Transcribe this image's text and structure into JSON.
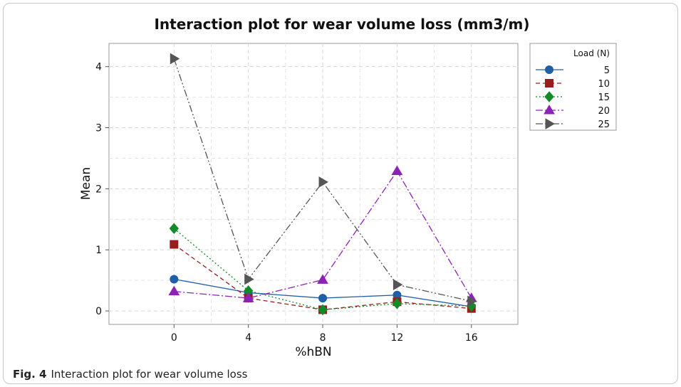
{
  "chart_data": {
    "type": "line",
    "title": "Interaction plot for wear volume loss (mm3/m)",
    "xlabel": "%hBN",
    "ylabel": "Mean",
    "x": [
      0,
      4,
      8,
      12,
      16
    ],
    "x_ticks": [
      "0",
      "4",
      "8",
      "12",
      "16"
    ],
    "y_ticks": [
      "0",
      "1",
      "2",
      "3",
      "4"
    ],
    "xlim": [
      -3.5,
      18.5
    ],
    "ylim": [
      -0.22,
      4.38
    ],
    "grid": true,
    "legend": {
      "title": "Load (N)",
      "position": "right"
    },
    "series": [
      {
        "name": "5",
        "values": [
          0.52,
          0.3,
          0.21,
          0.26,
          0.07
        ],
        "color": "#1f5fa8",
        "marker": "circle",
        "dash": "none"
      },
      {
        "name": "10",
        "values": [
          1.09,
          0.21,
          0.02,
          0.15,
          0.04
        ],
        "color": "#9b1c1c",
        "marker": "square",
        "dash": "6,4"
      },
      {
        "name": "15",
        "values": [
          1.35,
          0.33,
          0.02,
          0.12,
          0.08
        ],
        "color": "#138a29",
        "marker": "diamond",
        "dash": "2,3"
      },
      {
        "name": "20",
        "values": [
          0.32,
          0.21,
          0.51,
          2.29,
          0.21
        ],
        "color": "#8d22b6",
        "marker": "triangle",
        "dash": "10,3,2,3"
      },
      {
        "name": "25",
        "values": [
          4.13,
          0.52,
          2.11,
          0.43,
          0.16
        ],
        "color": "#555555",
        "marker": "arrow",
        "dash": "10,3,2,3,2,3"
      }
    ]
  },
  "caption": {
    "label": "Fig. 4",
    "text": "Interaction plot for wear volume loss"
  }
}
